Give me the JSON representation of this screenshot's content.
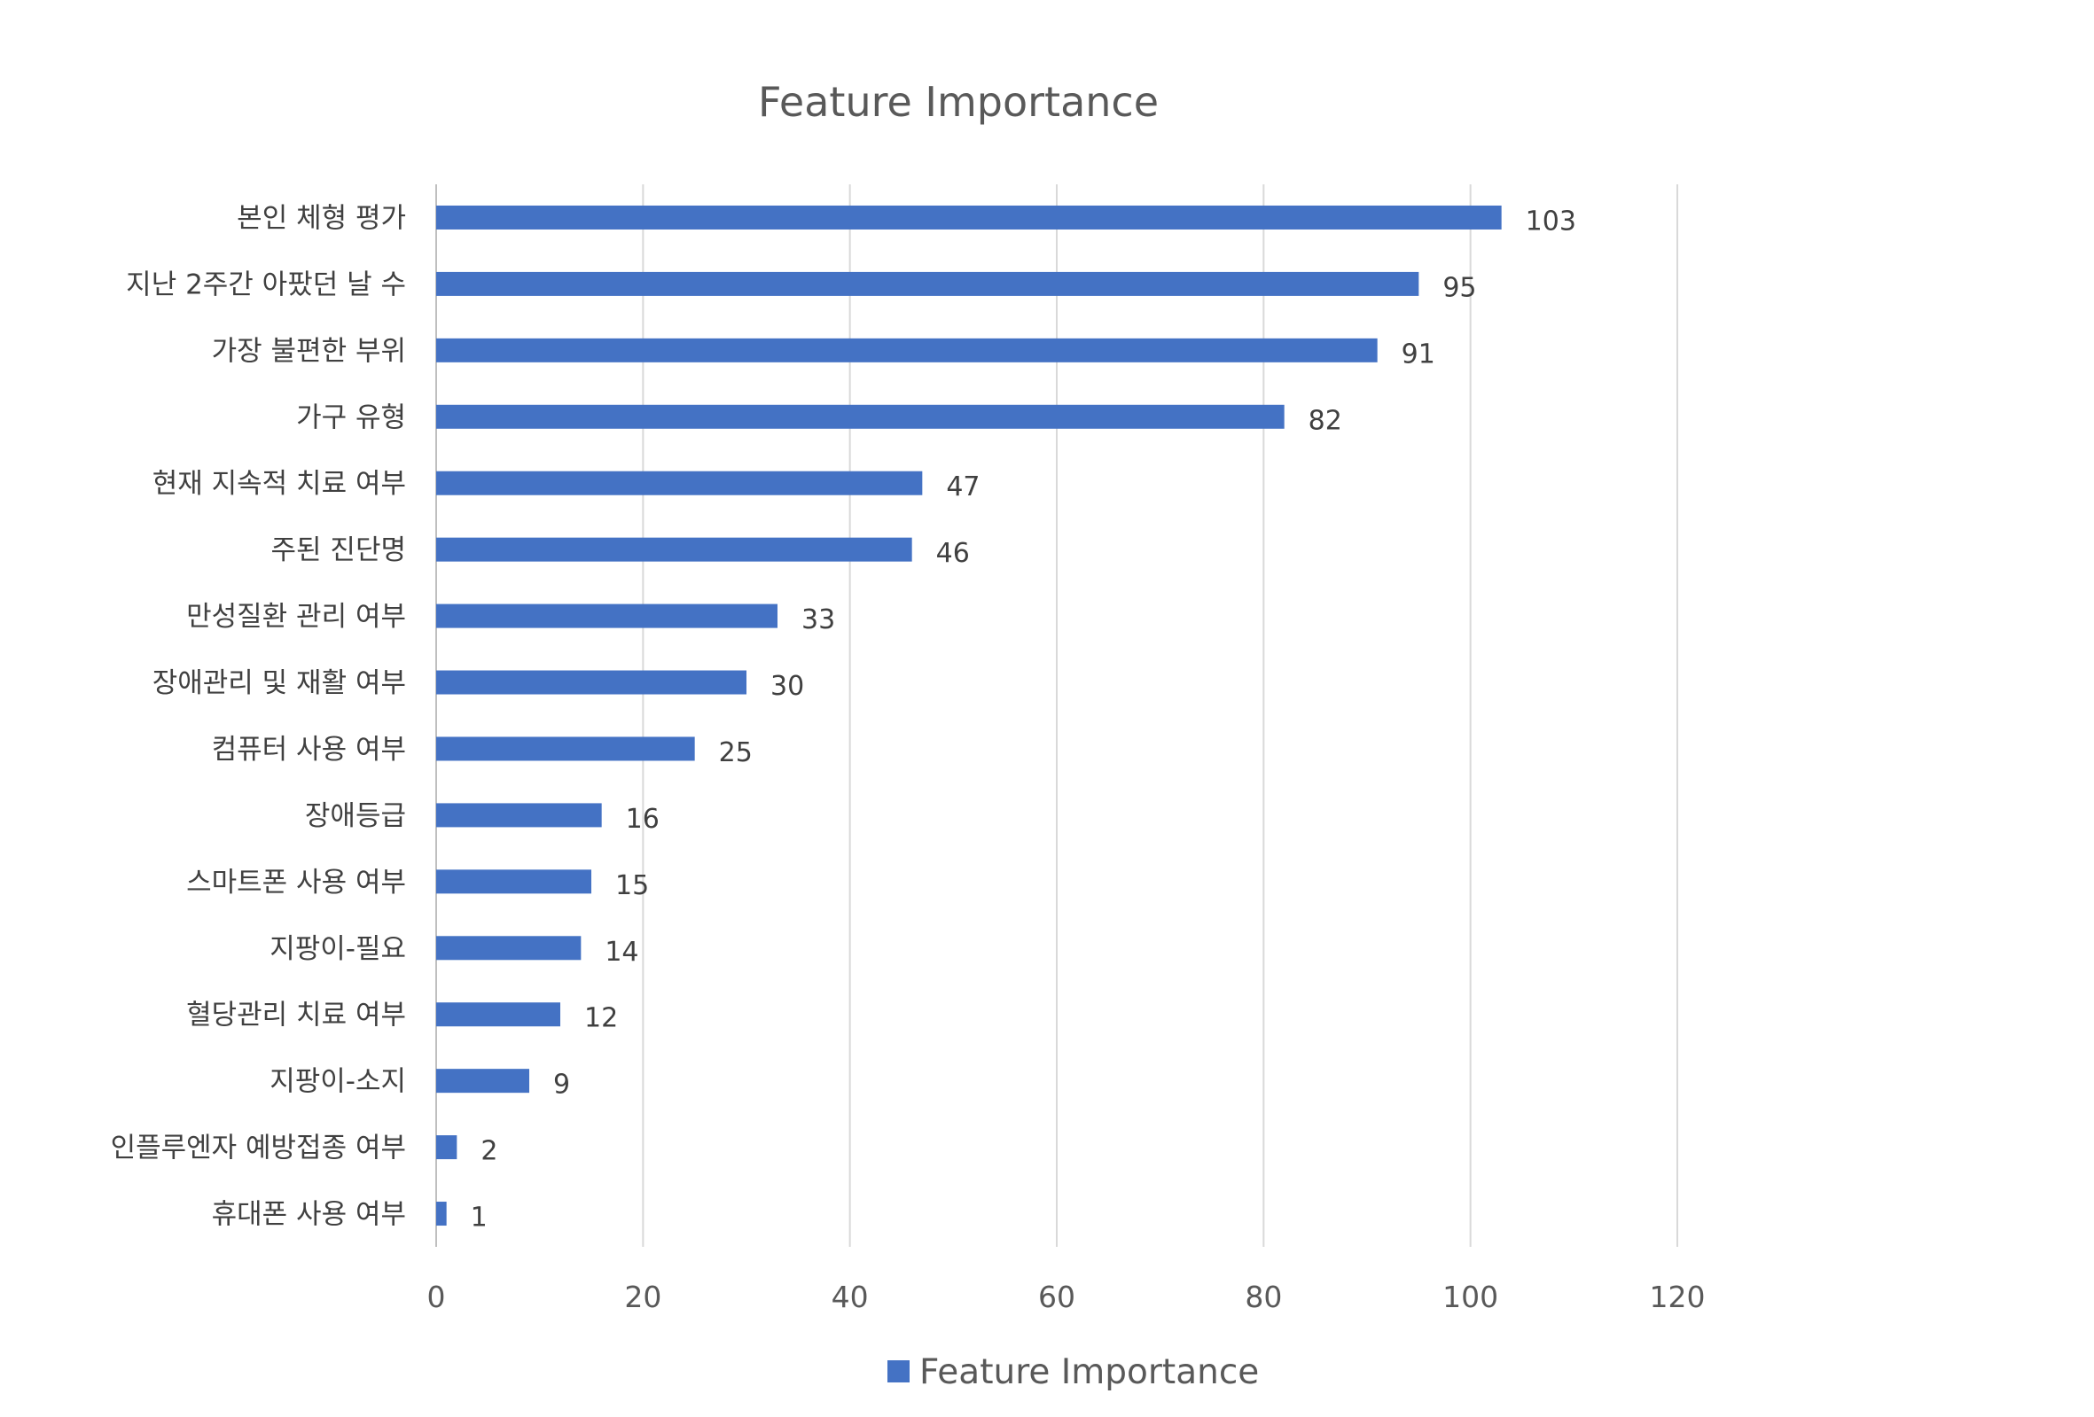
{
  "chart_data": {
    "type": "bar",
    "orientation": "horizontal",
    "title": "Feature Importance",
    "xlabel": "",
    "ylabel": "",
    "xlim": [
      0,
      120
    ],
    "xticks": [
      "0",
      "20",
      "40",
      "60",
      "80",
      "100",
      "120"
    ],
    "grid": true,
    "legend_position": "bottom",
    "bar_color": "#4472c4",
    "categories": [
      "본인 체형 평가",
      "지난 2주간 아팠던 날 수",
      "가장 불편한 부위",
      "가구 유형",
      "현재 지속적 치료 여부",
      "주된 진단명",
      "만성질환 관리 여부",
      "장애관리 및 재활 여부",
      "컴퓨터 사용 여부",
      "장애등급",
      "스마트폰 사용 여부",
      "지팡이-필요",
      "혈당관리 치료 여부",
      "지팡이-소지",
      "인플루엔자 예방접종 여부",
      "휴대폰 사용 여부"
    ],
    "series": [
      {
        "name": "Feature Importance",
        "values": [
          103,
          95,
          91,
          82,
          47,
          46,
          33,
          30,
          25,
          16,
          15,
          14,
          12,
          9,
          2,
          1
        ]
      }
    ]
  }
}
